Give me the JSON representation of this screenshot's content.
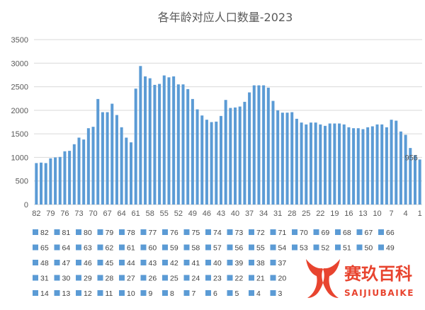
{
  "chart_data": {
    "type": "bar",
    "title": "各年龄对应人口数量-2023",
    "xlabel": "",
    "ylabel": "",
    "ylim": [
      0,
      3500
    ],
    "y_ticks": [
      0,
      500,
      1000,
      1500,
      2000,
      2500,
      3000,
      3500
    ],
    "grid": true,
    "legend_position": "bottom",
    "colors": {
      "blue": "#5b9bd5",
      "yellow": "#ffc000"
    },
    "highlight_ages": [
      71,
      70,
      69,
      68,
      67,
      66,
      65,
      64,
      61,
      60,
      59,
      58,
      57,
      56,
      55,
      54,
      53,
      52,
      51,
      50,
      49
    ],
    "x_tick_labels": [
      "82",
      "79",
      "76",
      "73",
      "70",
      "67",
      "64",
      "61",
      "58",
      "55",
      "52",
      "49",
      "46",
      "43",
      "40",
      "37",
      "34",
      "31",
      "28",
      "25",
      "22",
      "19",
      "16",
      "13",
      "10",
      "7",
      "4",
      "1"
    ],
    "categories": [
      "82",
      "81",
      "80",
      "79",
      "78",
      "77",
      "76",
      "75",
      "74",
      "73",
      "72",
      "71",
      "70",
      "69",
      "68",
      "67",
      "66",
      "65",
      "64",
      "63",
      "62",
      "61",
      "60",
      "59",
      "58",
      "57",
      "56",
      "55",
      "54",
      "53",
      "52",
      "51",
      "50",
      "49",
      "48",
      "47",
      "46",
      "45",
      "44",
      "43",
      "42",
      "41",
      "40",
      "39",
      "38",
      "37",
      "36",
      "35",
      "34",
      "33",
      "32",
      "31",
      "30",
      "29",
      "28",
      "27",
      "26",
      "25",
      "24",
      "23",
      "22",
      "21",
      "20",
      "19",
      "18",
      "17",
      "16",
      "15",
      "14",
      "13",
      "12",
      "11",
      "10",
      "9",
      "8",
      "7",
      "6",
      "5",
      "4",
      "3",
      "2",
      "1"
    ],
    "values": [
      880,
      890,
      880,
      980,
      1000,
      1010,
      1130,
      1140,
      1280,
      1420,
      1380,
      1620,
      1650,
      2240,
      1960,
      1960,
      2140,
      1900,
      1640,
      1420,
      1320,
      2460,
      2940,
      2720,
      2680,
      2540,
      2560,
      2740,
      2700,
      2720,
      2550,
      2550,
      2450,
      2240,
      2020,
      1890,
      1800,
      1750,
      1760,
      1880,
      2220,
      2050,
      2060,
      2080,
      2180,
      2380,
      2530,
      2530,
      2530,
      2480,
      2200,
      2000,
      1950,
      1950,
      1960,
      1820,
      1740,
      1700,
      1740,
      1740,
      1700,
      1670,
      1720,
      1720,
      1720,
      1700,
      1640,
      1620,
      1620,
      1600,
      1640,
      1660,
      1700,
      1700,
      1640,
      1800,
      1780,
      1550,
      1480,
      1200,
      1050,
      956
    ],
    "data_labels": [
      {
        "category": "1",
        "text": "956"
      }
    ],
    "legend_rows": [
      [
        "82",
        "81",
        "80",
        "79",
        "78",
        "77",
        "76",
        "75",
        "74",
        "73",
        "72",
        "71",
        "70",
        "69",
        "68",
        "67",
        "66"
      ],
      [
        "65",
        "64",
        "63",
        "62",
        "61",
        "60",
        "59",
        "58",
        "57",
        "56",
        "55",
        "54",
        "53",
        "52",
        "51",
        "50",
        "49"
      ],
      [
        "48",
        "47",
        "46",
        "45",
        "44",
        "43",
        "42",
        "41",
        "40",
        "39",
        "38",
        "37"
      ],
      [
        "31",
        "30",
        "29",
        "28",
        "27",
        "26",
        "25",
        "24",
        "23",
        "22",
        "21",
        "20"
      ],
      [
        "14",
        "13",
        "12",
        "11",
        "10",
        "9",
        "8",
        "7",
        "6",
        "5",
        "4",
        "3"
      ]
    ]
  },
  "watermark": {
    "text": "赛玖百科",
    "subtext": "SAIJIUBAIKE",
    "color": "#e8442f"
  }
}
